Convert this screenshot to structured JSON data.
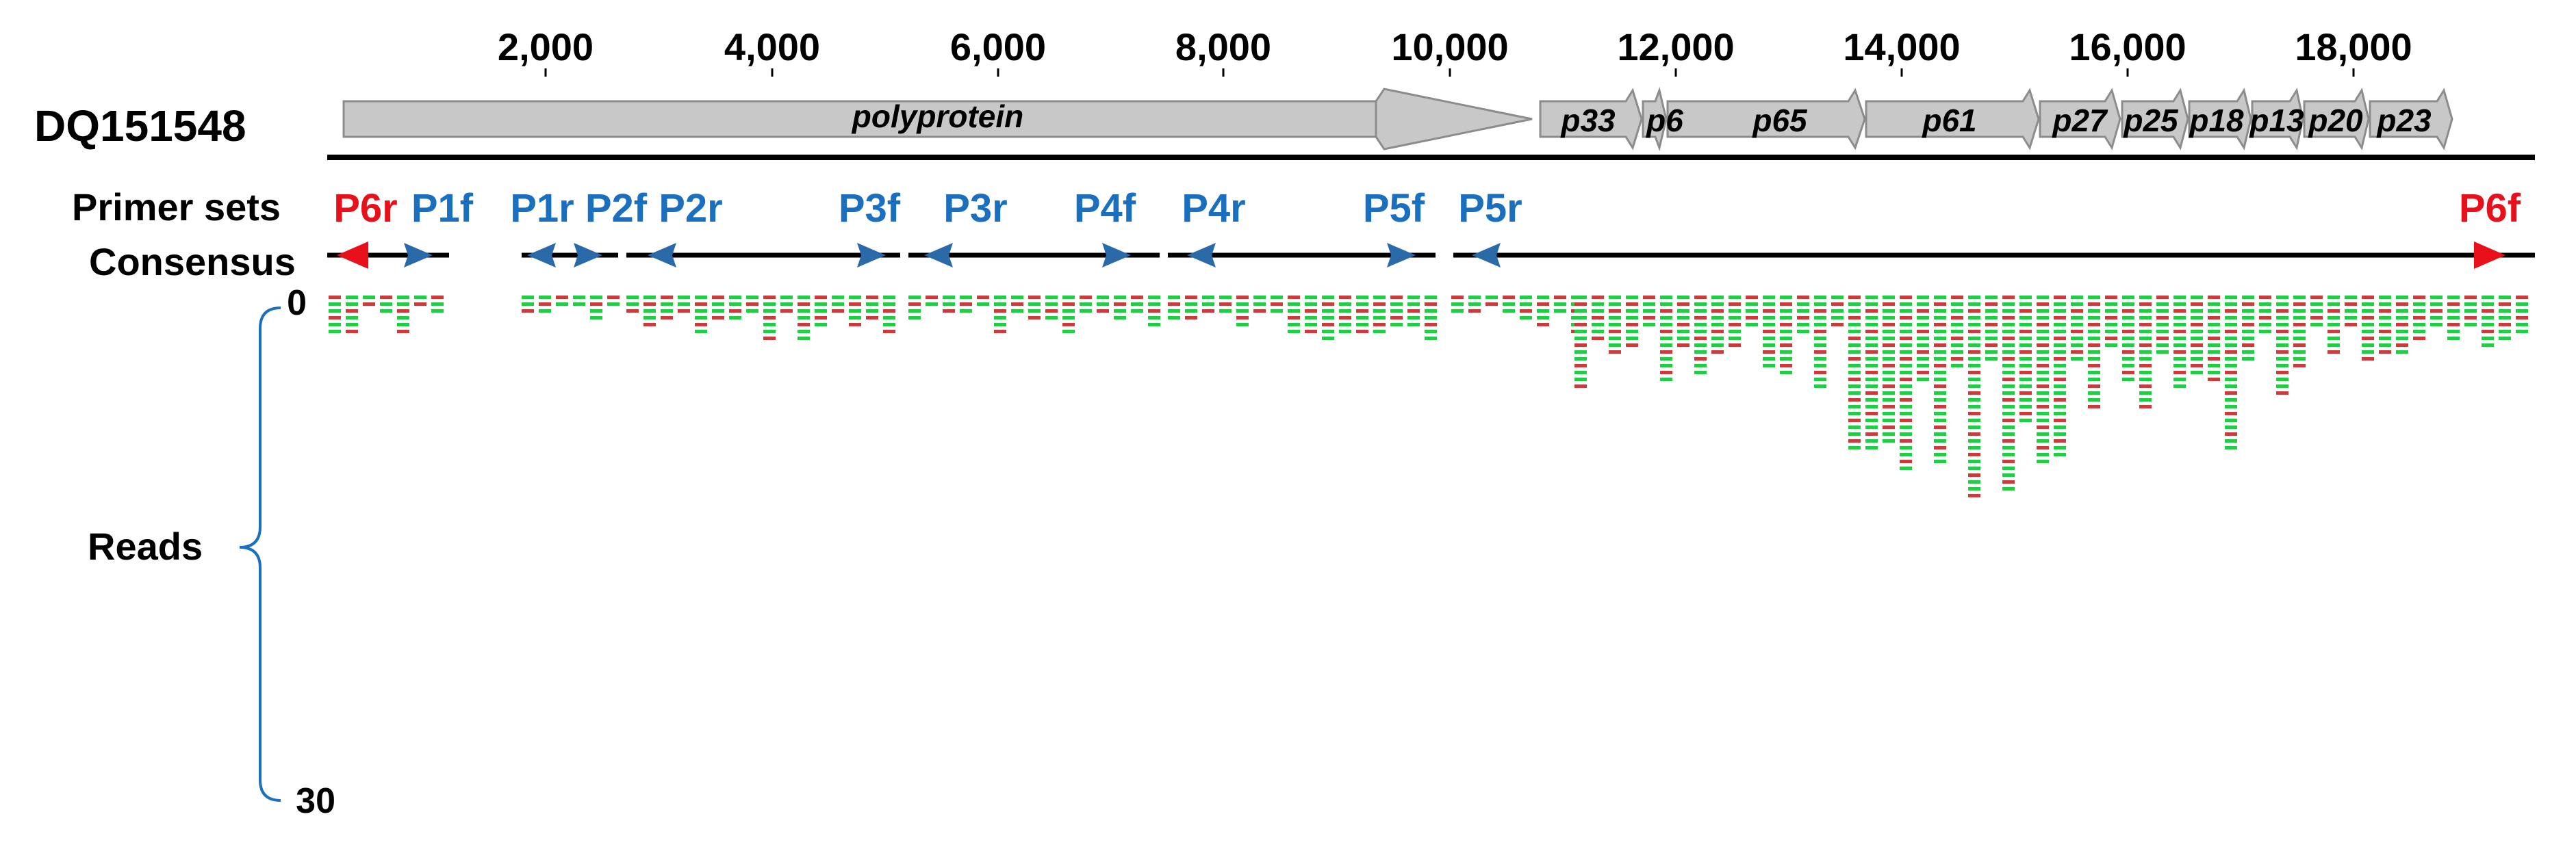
{
  "accession": "DQ151548",
  "ruler_ticks": [
    "2,000",
    "4,000",
    "6,000",
    "8,000",
    "10,000",
    "12,000",
    "14,000",
    "16,000",
    "18,000"
  ],
  "genes": [
    "polyprotein",
    "p33",
    "p6",
    "p65",
    "p61",
    "p27",
    "p25",
    "p18",
    "p13",
    "p20",
    "p23"
  ],
  "row_labels": {
    "primer_sets": "Primer sets",
    "consensus": "Consensus",
    "reads": "Reads"
  },
  "primers": [
    {
      "name": "P6r",
      "color": "#e8101a",
      "dir": "left"
    },
    {
      "name": "P1f",
      "color": "#1a6fbf",
      "dir": "right"
    },
    {
      "name": "P1r",
      "color": "#1a6fbf",
      "dir": "left"
    },
    {
      "name": "P2f",
      "color": "#1a6fbf",
      "dir": "right"
    },
    {
      "name": "P2r",
      "color": "#1a6fbf",
      "dir": "left"
    },
    {
      "name": "P3f",
      "color": "#1a6fbf",
      "dir": "right"
    },
    {
      "name": "P3r",
      "color": "#1a6fbf",
      "dir": "left"
    },
    {
      "name": "P4f",
      "color": "#1a6fbf",
      "dir": "right"
    },
    {
      "name": "P4r",
      "color": "#1a6fbf",
      "dir": "left"
    },
    {
      "name": "P5f",
      "color": "#1a6fbf",
      "dir": "right"
    },
    {
      "name": "P5r",
      "color": "#1a6fbf",
      "dir": "left"
    },
    {
      "name": "P6f",
      "color": "#e8101a",
      "dir": "right"
    }
  ],
  "reads_axis": {
    "min_label": "0",
    "max_label": "30"
  },
  "colors": {
    "forward_read": "#22cc44",
    "reverse_read": "#cc3b3b",
    "gene_fill": "#c8c8c8",
    "primer_blue": "#1a6fbf",
    "primer_red": "#e8101a",
    "brace": "#1a6fbf"
  }
}
